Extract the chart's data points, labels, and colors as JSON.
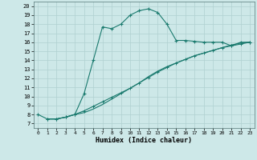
{
  "xlabel": "Humidex (Indice chaleur)",
  "xlim": [
    -0.5,
    23.5
  ],
  "ylim": [
    6.5,
    20.5
  ],
  "xticks": [
    0,
    1,
    2,
    3,
    4,
    5,
    6,
    7,
    8,
    9,
    10,
    11,
    12,
    13,
    14,
    15,
    16,
    17,
    18,
    19,
    20,
    21,
    22,
    23
  ],
  "yticks": [
    7,
    8,
    9,
    10,
    11,
    12,
    13,
    14,
    15,
    16,
    17,
    18,
    19,
    20
  ],
  "bg_color": "#cde8e8",
  "grid_color": "#b0d0d0",
  "line_color": "#1a7a6e",
  "curve1_x": [
    0,
    1,
    2,
    3,
    4,
    5,
    6,
    7,
    8,
    9,
    10,
    11,
    12,
    13,
    14,
    15,
    16,
    17,
    18,
    19,
    20,
    21,
    22,
    23
  ],
  "curve1_y": [
    8.0,
    7.5,
    7.5,
    7.7,
    8.0,
    10.3,
    14.0,
    17.7,
    17.5,
    18.0,
    19.0,
    19.5,
    19.7,
    19.3,
    18.0,
    16.2,
    16.2,
    16.1,
    16.0,
    16.0,
    16.0,
    15.6,
    16.0,
    16.0
  ],
  "curve2_x": [
    1,
    2,
    3,
    4,
    5,
    6,
    7,
    8,
    9,
    10,
    11,
    12,
    13,
    14,
    15,
    16,
    17,
    18,
    19,
    20,
    21,
    22,
    23
  ],
  "curve2_y": [
    7.5,
    7.5,
    7.7,
    8.0,
    8.4,
    8.9,
    9.4,
    9.9,
    10.4,
    10.9,
    11.5,
    12.1,
    12.7,
    13.2,
    13.7,
    14.1,
    14.5,
    14.8,
    15.1,
    15.4,
    15.6,
    15.8,
    16.0
  ],
  "curve3_x": [
    1,
    2,
    3,
    4,
    5,
    6,
    7,
    8,
    9,
    10,
    11,
    12,
    13,
    14,
    15,
    16,
    17,
    18,
    19,
    20,
    21,
    22,
    23
  ],
  "curve3_y": [
    7.5,
    7.5,
    7.7,
    8.0,
    8.2,
    8.6,
    9.1,
    9.7,
    10.3,
    10.9,
    11.5,
    12.2,
    12.8,
    13.3,
    13.7,
    14.1,
    14.5,
    14.8,
    15.1,
    15.4,
    15.7,
    15.9,
    16.0
  ]
}
